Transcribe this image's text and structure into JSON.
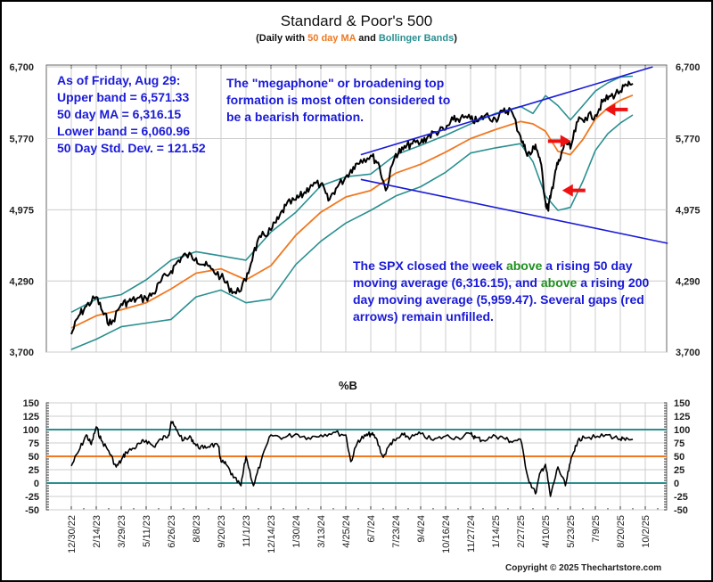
{
  "header": {
    "title": "Standard & Poor's 500",
    "subtitle_parts": [
      "(Daily with ",
      "50 day MA",
      " and ",
      "Bollinger Bands",
      ")"
    ]
  },
  "annotations": {
    "stats": [
      "As of Friday, Aug 29:",
      "Upper band = 6,571.33",
      "50 day MA = 6,316.15",
      "Lower band = 6,060.96",
      "50 Day Std. Dev. = 121.52"
    ],
    "megaphone": [
      "The \"megaphone\" or broadening top",
      "formation is most often considered to",
      "be a bearish formation."
    ],
    "summary": {
      "p1": "The SPX closed the week ",
      "w1": "above",
      "p2": " a rising 50 day moving average (6,316.15), and ",
      "w2": "above",
      "p3": " a rising 200 day moving average (5,959.47).  Several gaps (red arrows) remain unfilled."
    }
  },
  "footer": {
    "copyright": "Copyright © 2025 Thechartstore.com"
  },
  "colors": {
    "price": "#000000",
    "ma": "#f07820",
    "bands": "#2a8f90",
    "trendline": "#1a1ad8",
    "gap_arrow": "#ee1111",
    "grid": "#cccccc"
  },
  "chart_data": [
    {
      "type": "line",
      "title": "Standard & Poor's 500",
      "subtitle": "(Daily with 50 day MA and Bollinger Bands)",
      "yscale": "log",
      "ylim": [
        3700,
        6700
      ],
      "yticks": [
        3700,
        4290,
        4975,
        5770,
        6700
      ],
      "ytick_labels": [
        "3,700",
        "4,290",
        "4,975",
        "5,770",
        "6,700"
      ],
      "xtick_labels": [
        "12/30/22",
        "2/14/23",
        "3/29/23",
        "5/11/23",
        "6/26/23",
        "8/8/23",
        "9/20/23",
        "11/1/23",
        "12/14/23",
        "1/30/24",
        "3/13/24",
        "4/25/24",
        "6/7/24",
        "7/23/24",
        "9/4/24",
        "10/16/24",
        "11/27/24",
        "1/14/25",
        "2/27/25",
        "4/10/25",
        "5/23/25",
        "7/9/25",
        "8/20/25",
        "10/2/25"
      ],
      "grid": true,
      "series": [
        {
          "name": "SPX",
          "x_index": [
            0,
            0.3,
            0.6,
            1,
            1.3,
            1.6,
            2,
            2.3,
            2.6,
            3,
            3.3,
            3.6,
            4,
            4.3,
            4.6,
            5,
            5.3,
            5.6,
            6,
            6.3,
            6.6,
            7,
            7.3,
            7.6,
            8,
            8.3,
            8.6,
            9,
            9.3,
            9.6,
            10,
            10.3,
            10.6,
            11,
            11.3,
            11.6,
            12,
            12.3,
            12.6,
            13,
            13.3,
            13.6,
            14,
            14.3,
            14.6,
            15,
            15.3,
            15.6,
            16,
            16.3,
            16.6,
            17,
            17.3,
            17.6,
            18,
            18.2,
            18.4,
            18.6,
            18.8,
            19,
            19.1,
            19.2,
            19.4,
            19.6,
            19.8,
            20,
            20.3,
            20.6,
            21,
            21.3,
            21.6,
            22,
            22.3,
            22.5
          ],
          "values": [
            3840,
            3990,
            4070,
            4150,
            4000,
            3920,
            4090,
            4110,
            4130,
            4140,
            4180,
            4290,
            4380,
            4480,
            4530,
            4500,
            4440,
            4400,
            4330,
            4240,
            4180,
            4290,
            4550,
            4700,
            4770,
            4880,
            5020,
            5080,
            5140,
            5240,
            5250,
            5070,
            5200,
            5330,
            5440,
            5520,
            5570,
            5490,
            5180,
            5590,
            5640,
            5710,
            5720,
            5800,
            5850,
            5880,
            6000,
            6020,
            6010,
            5980,
            6060,
            6010,
            6100,
            6130,
            5800,
            5630,
            5580,
            5700,
            5500,
            5060,
            4980,
            5100,
            5400,
            5530,
            5750,
            5650,
            5980,
            6030,
            6060,
            6230,
            6300,
            6370,
            6440,
            6470
          ]
        },
        {
          "name": "50 day MA",
          "x_index": [
            0,
            1,
            2,
            3,
            4,
            5,
            6,
            7,
            8,
            9,
            10,
            11,
            12,
            13,
            14,
            15,
            16,
            17,
            18,
            18.5,
            19,
            19.5,
            20,
            20.5,
            21,
            21.5,
            22,
            22.5
          ],
          "values": [
            3890,
            3990,
            4040,
            4100,
            4220,
            4360,
            4400,
            4300,
            4430,
            4720,
            4950,
            5110,
            5180,
            5370,
            5470,
            5610,
            5770,
            5880,
            5980,
            5950,
            5860,
            5620,
            5580,
            5760,
            6010,
            6150,
            6250,
            6316.15
          ]
        },
        {
          "name": "Upper band",
          "x_index": [
            0,
            1,
            2,
            3,
            4,
            5,
            6,
            7,
            8,
            9,
            10,
            11,
            12,
            13,
            14,
            15,
            16,
            17,
            18,
            18.5,
            19,
            19.5,
            20,
            20.5,
            21,
            21.5,
            22,
            22.5
          ],
          "values": [
            4020,
            4130,
            4170,
            4300,
            4480,
            4560,
            4520,
            4480,
            4750,
            4950,
            5230,
            5330,
            5360,
            5580,
            5690,
            5810,
            5950,
            6080,
            6170,
            6080,
            6310,
            6180,
            6000,
            6180,
            6370,
            6480,
            6560,
            6571.33
          ]
        },
        {
          "name": "Lower band",
          "x_index": [
            0,
            1,
            2,
            3,
            4,
            5,
            6,
            7,
            8,
            9,
            10,
            11,
            12,
            13,
            14,
            15,
            16,
            17,
            18,
            18.5,
            19,
            19.5,
            20,
            20.5,
            21,
            21.5,
            22,
            22.5
          ],
          "values": [
            3720,
            3800,
            3900,
            3930,
            3960,
            4150,
            4210,
            4100,
            4130,
            4440,
            4660,
            4840,
            4970,
            5120,
            5220,
            5380,
            5600,
            5660,
            5710,
            5500,
            5120,
            4970,
            5000,
            5280,
            5630,
            5830,
            5960,
            6060.96
          ]
        },
        {
          "name": "Upper trendline",
          "x_index": [
            11.6,
            23.3
          ],
          "values": [
            5580,
            6700
          ]
        },
        {
          "name": "Lower trendline",
          "x_index": [
            11.6,
            23.9
          ],
          "values": [
            5300,
            4640
          ]
        }
      ],
      "gap_arrows": [
        {
          "direction": "right",
          "x_index": 19.6,
          "value": 5740
        },
        {
          "direction": "left",
          "x_index": 20.1,
          "value": 5180
        },
        {
          "direction": "left",
          "x_index": 21.8,
          "value": 6130
        }
      ]
    },
    {
      "type": "line",
      "title": "%B",
      "ylim": [
        -50,
        150
      ],
      "yticks": [
        -50,
        -25,
        0,
        25,
        50,
        75,
        100,
        125,
        150
      ],
      "ytick_labels": [
        "-50",
        "-25",
        "0",
        "25",
        "50",
        "75",
        "100",
        "125",
        "150"
      ],
      "reference_lines": [
        {
          "value": 100,
          "color": "#2a8f90"
        },
        {
          "value": 50,
          "color": "#f07820"
        },
        {
          "value": 0,
          "color": "#2a8f90"
        }
      ],
      "series": [
        {
          "name": "%B",
          "x_index": [
            0,
            0.3,
            0.6,
            0.8,
            1,
            1.2,
            1.5,
            1.8,
            2,
            2.2,
            2.5,
            2.8,
            3,
            3.3,
            3.6,
            3.9,
            4,
            4.2,
            4.5,
            4.8,
            5,
            5.3,
            5.6,
            5.9,
            6,
            6.2,
            6.5,
            6.8,
            7,
            7.3,
            7.6,
            8,
            8.5,
            9,
            9.5,
            10,
            10.5,
            11,
            11.2,
            11.5,
            11.8,
            12,
            12.2,
            12.5,
            12.8,
            13,
            13.3,
            13.6,
            14,
            14.5,
            15,
            15.5,
            16,
            16.2,
            16.5,
            17,
            17.3,
            17.6,
            18,
            18.3,
            18.6,
            18.8,
            19,
            19.2,
            19.5,
            19.8,
            20,
            20.2,
            20.5,
            21,
            21.5,
            22,
            22.2,
            22.5
          ],
          "values": [
            32,
            60,
            90,
            72,
            105,
            80,
            60,
            30,
            42,
            58,
            65,
            75,
            80,
            68,
            82,
            90,
            115,
            100,
            80,
            85,
            70,
            65,
            72,
            68,
            40,
            35,
            10,
            -5,
            50,
            -5,
            40,
            90,
            85,
            92,
            85,
            90,
            95,
            90,
            40,
            80,
            88,
            92,
            85,
            48,
            75,
            80,
            90,
            85,
            92,
            80,
            88,
            85,
            92,
            85,
            80,
            88,
            85,
            78,
            82,
            10,
            -20,
            20,
            35,
            -25,
            30,
            -5,
            38,
            70,
            88,
            85,
            90,
            82,
            80,
            82
          ]
        }
      ]
    }
  ]
}
